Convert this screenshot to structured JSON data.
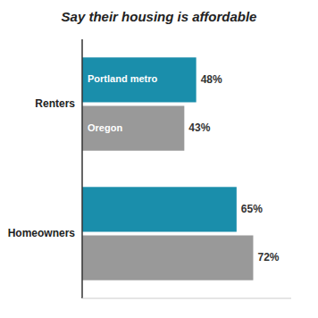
{
  "chart_data": {
    "type": "bar",
    "orientation": "horizontal",
    "title": "Say their housing is affordable",
    "categories": [
      "Renters",
      "Homeowners"
    ],
    "series": [
      {
        "name": "Portland metro",
        "color": "#1a8eab",
        "values": [
          48,
          65
        ],
        "value_labels": [
          "48%",
          "65%"
        ]
      },
      {
        "name": "Oregon",
        "color": "#999999",
        "values": [
          43,
          72
        ],
        "value_labels": [
          "43%",
          "72%"
        ]
      }
    ],
    "xlim": [
      0,
      88
    ],
    "tick_labels": false,
    "data_labels": true,
    "grid": false
  }
}
